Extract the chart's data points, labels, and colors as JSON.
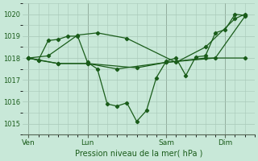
{
  "bg_color": "#c8e8d8",
  "line_color": "#1a5c1a",
  "grid_color": "#a8c8b8",
  "xlabel": "Pression niveau de la mer( hPa )",
  "ylim": [
    1014.5,
    1020.5
  ],
  "yticks": [
    1015,
    1016,
    1017,
    1018,
    1019,
    1020
  ],
  "xtick_labels": [
    "Ven",
    "Lun",
    "Sam",
    "Dim"
  ],
  "xtick_positions": [
    0,
    3,
    7,
    10
  ],
  "xlim": [
    -0.3,
    11.5
  ],
  "series1_x": [
    0,
    0.5,
    1.0,
    1.5,
    2.0,
    2.5,
    3.0,
    3.5,
    4.0,
    4.5,
    5.0,
    5.5,
    6.0,
    6.5,
    7.0,
    7.5,
    8.0,
    8.5,
    9.0,
    9.5,
    10.0,
    10.5,
    11.0
  ],
  "series1_y": [
    1018.0,
    1017.9,
    1018.8,
    1018.85,
    1019.0,
    1019.0,
    1017.8,
    1017.5,
    1015.9,
    1015.8,
    1015.95,
    1015.1,
    1015.6,
    1017.1,
    1017.85,
    1018.0,
    1017.2,
    1018.05,
    1018.1,
    1019.15,
    1019.3,
    1020.0,
    1019.95
  ],
  "series2_x": [
    0,
    1.0,
    2.5,
    3.5,
    5.0,
    7.5,
    9.0,
    10.5,
    11.0
  ],
  "series2_y": [
    1018.0,
    1018.1,
    1019.05,
    1019.15,
    1018.9,
    1017.8,
    1018.5,
    1019.8,
    1020.0
  ],
  "series3_x": [
    0,
    0.5,
    1.5,
    3.0,
    5.5,
    7.0,
    9.5,
    11.0
  ],
  "series3_y": [
    1018.0,
    1017.9,
    1017.75,
    1017.75,
    1017.55,
    1017.8,
    1018.0,
    1019.9
  ],
  "series4_x": [
    0,
    1.5,
    3.0,
    4.5,
    7.0,
    9.0,
    11.0
  ],
  "series4_y": [
    1018.0,
    1017.75,
    1017.75,
    1017.5,
    1017.8,
    1018.0,
    1018.0
  ]
}
